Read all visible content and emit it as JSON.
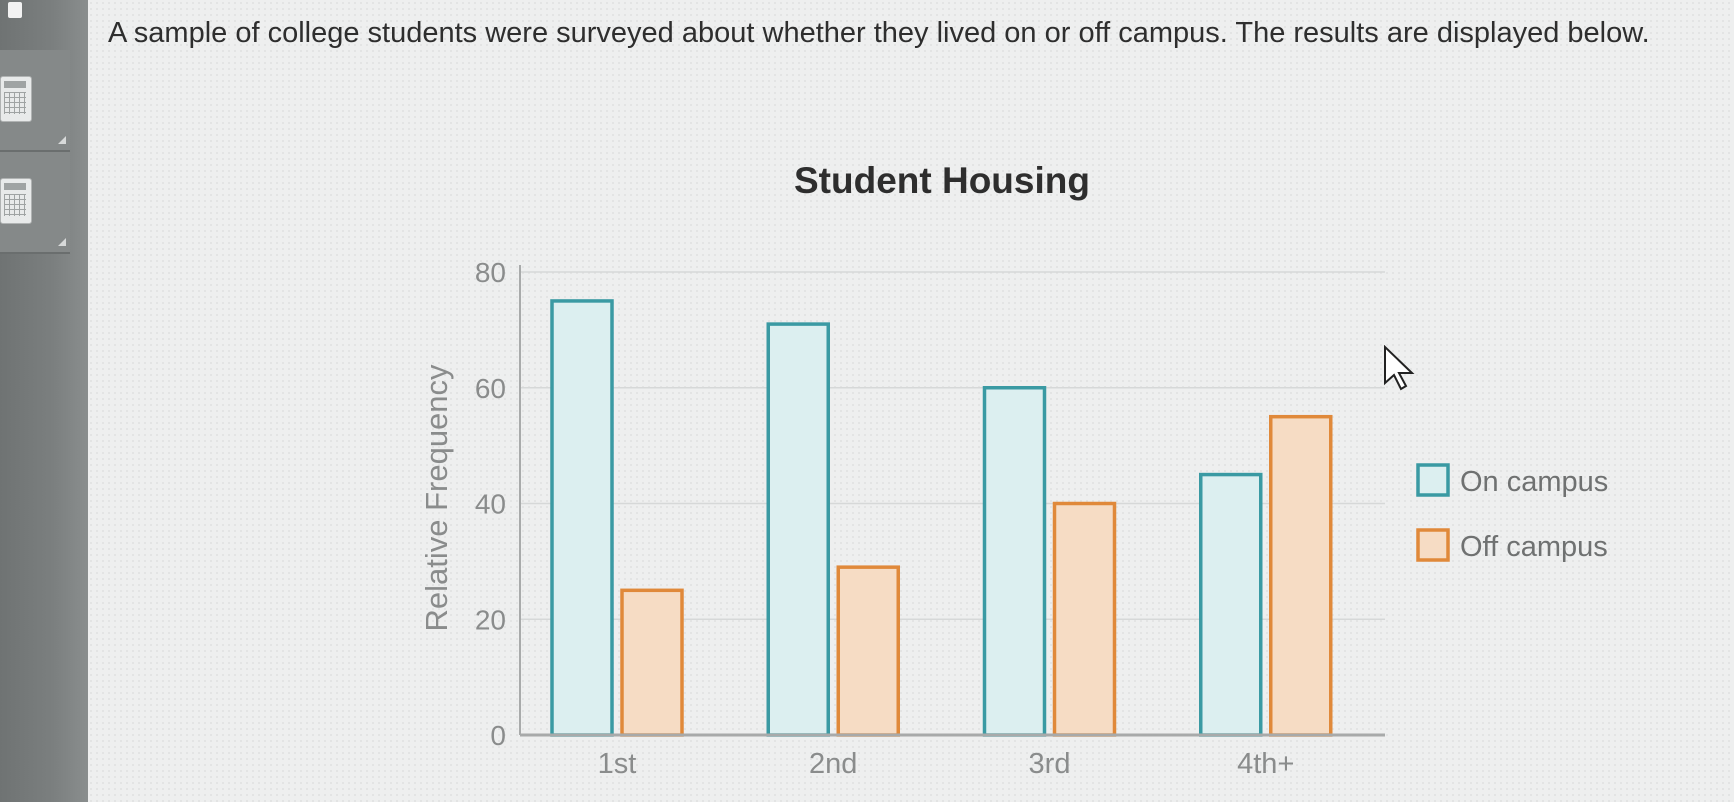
{
  "question": {
    "text": "A sample of college students were surveyed about whether they lived on or off campus. The results are displayed below."
  },
  "sidebar": {
    "icons": [
      "calculator-icon",
      "calculator-icon"
    ]
  },
  "colors": {
    "on_campus_stroke": "#3a9aa3",
    "on_campus_fill": "#dceff0",
    "off_campus_stroke": "#e0893a",
    "off_campus_fill": "#f6dcc4"
  },
  "chart_data": {
    "type": "bar",
    "title": "Student Housing",
    "xlabel": "",
    "ylabel": "Relative Frequency",
    "ylim": [
      0,
      80
    ],
    "yticks": [
      0,
      20,
      40,
      60,
      80
    ],
    "grid": true,
    "legend_position": "right",
    "categories": [
      "1st",
      "2nd",
      "3rd",
      "4th+"
    ],
    "series": [
      {
        "name": "On campus",
        "values": [
          75,
          71,
          60,
          45
        ]
      },
      {
        "name": "Off campus",
        "values": [
          25,
          29,
          40,
          55
        ]
      }
    ]
  }
}
